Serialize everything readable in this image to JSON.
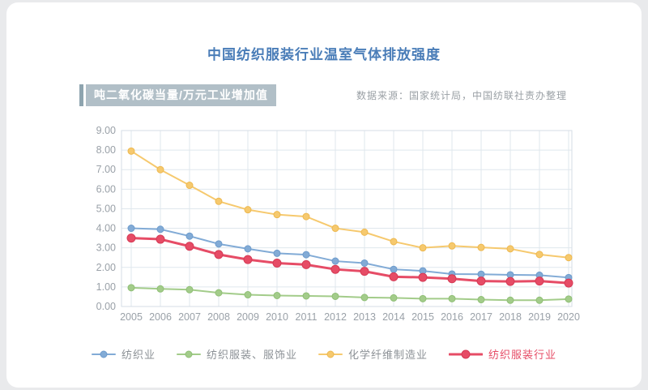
{
  "page": {
    "title": "中国纺织服装行业温室气体排放强度",
    "unit_label": "吨二氧化碳当量/万元工业增加值",
    "source": "数据来源：国家统计局，中国纺联社责办整理"
  },
  "colors": {
    "title": "#4a7db8",
    "unit_badge_bg": "#b1bfc7",
    "unit_accent": "#8ea4af",
    "source_text": "#9aa0a5",
    "grid_line": "#dfe7ed",
    "plot_border": "#d5dee6",
    "axis_text": "#9aa1a8",
    "legend_label_default": "#8c9196"
  },
  "chart_data": {
    "type": "line",
    "title": "中国纺织服装行业温室气体排放强度",
    "ylabel": "吨二氧化碳当量/万元工业增加值",
    "x": [
      "2005",
      "2006",
      "2007",
      "2008",
      "2009",
      "2010",
      "2011",
      "2012",
      "2013",
      "2014",
      "2015",
      "2016",
      "2017",
      "2018",
      "2019",
      "2020"
    ],
    "ylim": [
      0,
      9
    ],
    "ytick_step": 1,
    "ytick_decimals": 2,
    "grid": true,
    "legend_position": "bottom",
    "series": [
      {
        "name": "纺织业",
        "color": "#82abd6",
        "dot_stroke": "#6d9bcc",
        "label_color": "#8c9196",
        "line_width": 2,
        "dot_radius": 4,
        "swatch_len": 30,
        "values": [
          4.0,
          3.95,
          3.6,
          3.2,
          2.95,
          2.72,
          2.65,
          2.32,
          2.22,
          1.9,
          1.82,
          1.66,
          1.65,
          1.62,
          1.6,
          1.48
        ]
      },
      {
        "name": "纺织服装、服饰业",
        "color": "#a3cc8a",
        "dot_stroke": "#8fbf75",
        "label_color": "#8c9196",
        "line_width": 2,
        "dot_radius": 4,
        "swatch_len": 30,
        "values": [
          0.96,
          0.9,
          0.86,
          0.7,
          0.6,
          0.56,
          0.54,
          0.52,
          0.46,
          0.44,
          0.4,
          0.4,
          0.35,
          0.32,
          0.32,
          0.38
        ]
      },
      {
        "name": "化学纤维制造业",
        "color": "#f6c96e",
        "dot_stroke": "#edb84f",
        "label_color": "#8c9196",
        "line_width": 2,
        "dot_radius": 4,
        "swatch_len": 30,
        "values": [
          7.95,
          7.0,
          6.2,
          5.38,
          4.95,
          4.7,
          4.6,
          4.0,
          3.8,
          3.32,
          3.0,
          3.1,
          3.02,
          2.95,
          2.66,
          2.5
        ]
      },
      {
        "name": "纺织服装行业",
        "color": "#e64c66",
        "dot_stroke": "#d63a55",
        "label_color": "#e64c66",
        "line_width": 3,
        "dot_radius": 5,
        "swatch_len": 42,
        "values": [
          3.5,
          3.44,
          3.08,
          2.66,
          2.4,
          2.22,
          2.14,
          1.9,
          1.8,
          1.52,
          1.49,
          1.42,
          1.3,
          1.28,
          1.3,
          1.2
        ]
      }
    ]
  }
}
